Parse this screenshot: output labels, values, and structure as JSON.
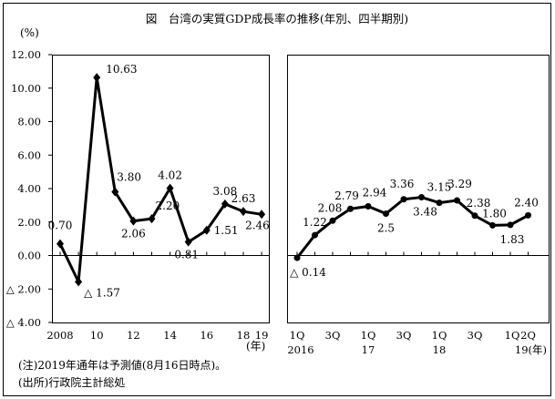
{
  "chart_data": [
    {
      "type": "line",
      "title": "図　台湾の実質GDP成長率の推移(年別、四半期別)",
      "ylabel": "(%)",
      "xlabel": "(年)",
      "ylim": [
        -4,
        12
      ],
      "yticks": [
        12,
        10,
        8,
        6,
        4,
        2,
        0,
        -2,
        -4
      ],
      "ytick_labels": [
        "12.00",
        "10.00",
        "8.00",
        "6.00",
        "4.00",
        "2.00",
        "0.00",
        "△ 2.00",
        "△ 4.00"
      ],
      "x": [
        2008,
        2009,
        2010,
        2011,
        2012,
        2013,
        2014,
        2015,
        2016,
        2017,
        2018,
        2019
      ],
      "xtick_labels": [
        "2008",
        "",
        "10",
        "",
        "12",
        "",
        "14",
        "",
        "16",
        "",
        "18",
        "19"
      ],
      "values": [
        0.7,
        -1.57,
        10.63,
        3.8,
        2.06,
        2.2,
        4.02,
        0.81,
        1.51,
        3.08,
        2.63,
        2.46
      ],
      "data_labels": [
        "0.70",
        "△ 1.57",
        "10.63",
        "3.80",
        "2.06",
        "2.20",
        "4.02",
        "0.81",
        "1.51",
        "3.08",
        "2.63",
        "2.46"
      ],
      "marker": "diamond"
    },
    {
      "type": "line",
      "ylim": [
        -4,
        12
      ],
      "x": [
        "2016 1Q",
        "2016 2Q",
        "2016 3Q",
        "2016 4Q",
        "2017 1Q",
        "2017 2Q",
        "2017 3Q",
        "2017 4Q",
        "2018 1Q",
        "2018 2Q",
        "2018 3Q",
        "2018 4Q",
        "2019 1Q",
        "2019 2Q"
      ],
      "xtick_labels": [
        "1Q",
        "",
        "3Q",
        "",
        "1Q",
        "",
        "3Q",
        "",
        "1Q",
        "",
        "3Q",
        "",
        "1Q",
        "2Q"
      ],
      "year_labels": [
        "2016",
        "17",
        "18",
        "19(年)"
      ],
      "values": [
        -0.14,
        1.22,
        2.08,
        2.79,
        2.94,
        2.5,
        3.36,
        3.48,
        3.15,
        3.29,
        2.38,
        1.8,
        1.83,
        2.4
      ],
      "data_labels": [
        "△ 0.14",
        "1.22",
        "2.08",
        "2.79",
        "2.94",
        "2.5",
        "3.36",
        "3.48",
        "3.15",
        "3.29",
        "2.38",
        "1.80",
        "1.83",
        "2.40"
      ],
      "marker": "circle"
    }
  ],
  "notes": {
    "note": "(注)2019年通年は予測値(8月16日時点)。",
    "source": "(出所)行政院主計総処"
  }
}
